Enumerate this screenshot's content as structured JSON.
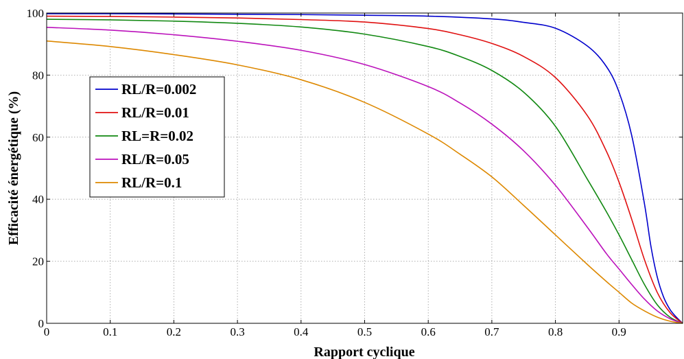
{
  "chart_data": {
    "type": "line",
    "title": "",
    "xlabel": "Rapport cyclique",
    "ylabel": "Efficacité énergétique (%)",
    "xlim": [
      0,
      1
    ],
    "ylim": [
      0,
      100
    ],
    "xticks": [
      0,
      0.1,
      0.2,
      0.3,
      0.4,
      0.5,
      0.6,
      0.7,
      0.8,
      0.9
    ],
    "xtick_labels": [
      "0",
      "0.1",
      "0.2",
      "0.3",
      "0.4",
      "0.5",
      "0.6",
      "0.7",
      "0.8",
      "0.9"
    ],
    "yticks": [
      0,
      20,
      40,
      60,
      80,
      100
    ],
    "ytick_labels": [
      "0",
      "20",
      "40",
      "60",
      "80",
      "100"
    ],
    "grid": true,
    "legend_position": "middle-left",
    "series": [
      {
        "name": "RL/R=0.002",
        "color": "#0000cc",
        "x": [
          0,
          0.1,
          0.2,
          0.3,
          0.4,
          0.5,
          0.6,
          0.7,
          0.75,
          0.8,
          0.85,
          0.88,
          0.9,
          0.92,
          0.94,
          0.95,
          0.96,
          0.97,
          0.98,
          0.99,
          1.0
        ],
        "y": [
          99.8,
          99.8,
          99.7,
          99.6,
          99.5,
          99.3,
          99.0,
          98.1,
          97.0,
          95.1,
          89.4,
          82.8,
          74.5,
          60.5,
          38.5,
          25.0,
          15.0,
          8.5,
          4.5,
          2.0,
          0
        ]
      },
      {
        "name": "RL/R=0.01",
        "color": "#e01010",
        "x": [
          0,
          0.1,
          0.2,
          0.3,
          0.4,
          0.5,
          0.6,
          0.65,
          0.7,
          0.75,
          0.8,
          0.85,
          0.88,
          0.9,
          0.92,
          0.94,
          0.96,
          0.98,
          1.0
        ],
        "y": [
          99.0,
          98.9,
          98.7,
          98.4,
          97.9,
          97.1,
          95.0,
          93.0,
          90.2,
          86.0,
          79.2,
          67.0,
          55.5,
          45.5,
          33.5,
          20.5,
          10.0,
          3.5,
          0
        ]
      },
      {
        "name": "RL=R=0.02",
        "color": "#118811",
        "x": [
          0,
          0.1,
          0.2,
          0.3,
          0.4,
          0.5,
          0.6,
          0.65,
          0.7,
          0.75,
          0.8,
          0.85,
          0.88,
          0.9,
          0.92,
          0.94,
          0.96,
          0.98,
          1.0
        ],
        "y": [
          98.0,
          97.8,
          97.4,
          96.7,
          95.5,
          93.2,
          89.2,
          86.0,
          81.5,
          74.5,
          63.5,
          46.5,
          36.0,
          28.5,
          20.5,
          12.5,
          6.0,
          2.0,
          0
        ]
      },
      {
        "name": "RL/R=0.05",
        "color": "#bb11bb",
        "x": [
          0,
          0.1,
          0.2,
          0.3,
          0.4,
          0.5,
          0.6,
          0.65,
          0.7,
          0.75,
          0.8,
          0.85,
          0.88,
          0.9,
          0.92,
          0.94,
          0.96,
          0.98,
          1.0
        ],
        "y": [
          95.4,
          94.5,
          93.0,
          90.9,
          88.0,
          83.4,
          76.3,
          71.0,
          64.2,
          55.6,
          44.5,
          31.0,
          22.5,
          17.5,
          12.5,
          7.8,
          4.0,
          1.5,
          0
        ]
      },
      {
        "name": "RL/R=0.1",
        "color": "#dd8800",
        "x": [
          0,
          0.1,
          0.2,
          0.3,
          0.4,
          0.5,
          0.6,
          0.65,
          0.7,
          0.75,
          0.8,
          0.85,
          0.88,
          0.9,
          0.92,
          0.94,
          0.96,
          0.98,
          1.0
        ],
        "y": [
          91.0,
          89.2,
          86.6,
          83.3,
          78.5,
          71.2,
          61.0,
          54.5,
          47.2,
          38.0,
          28.5,
          19.0,
          13.5,
          10.0,
          6.5,
          4.0,
          2.0,
          0.7,
          0
        ]
      }
    ]
  }
}
